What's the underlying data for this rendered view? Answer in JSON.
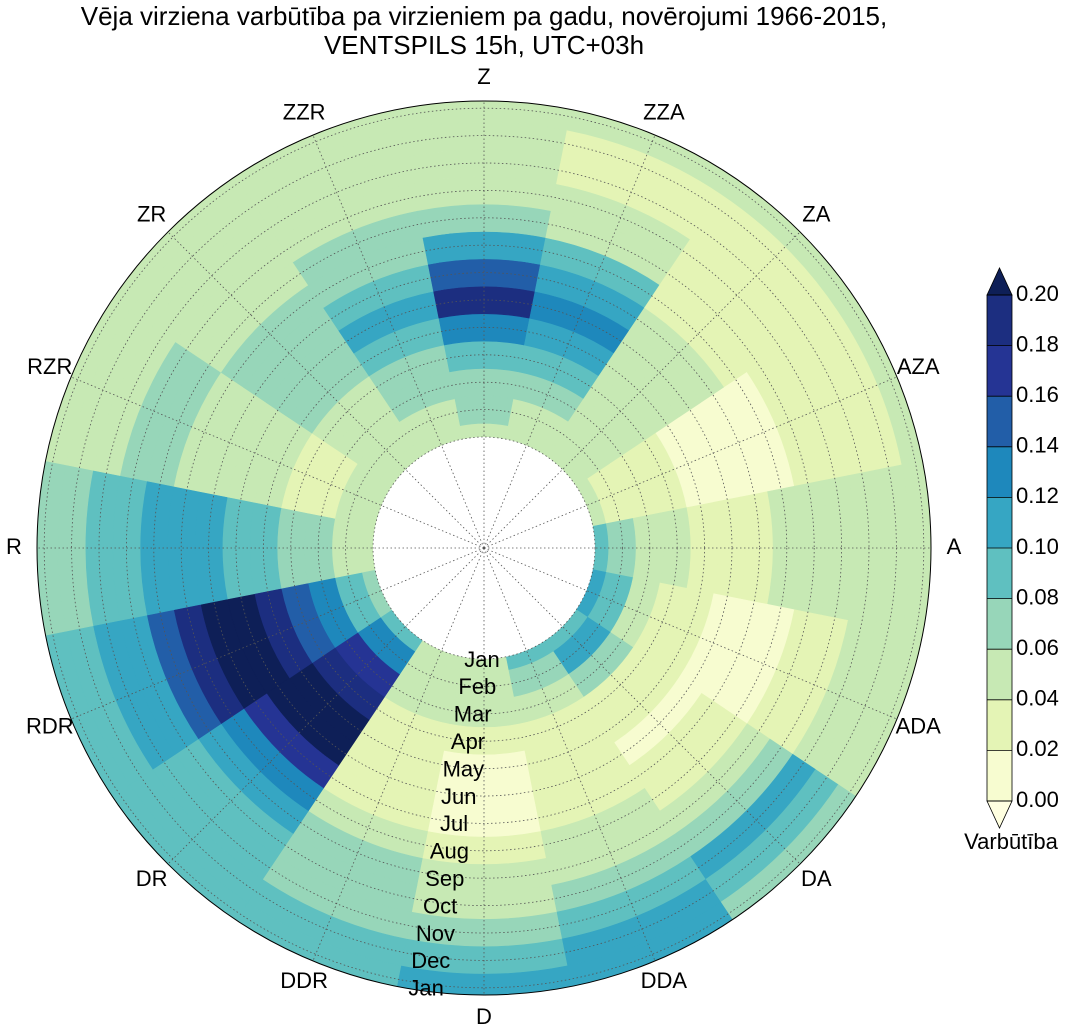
{
  "chart_data": {
    "type": "polar-contour",
    "title": "Vēja virziena varbūtība pa virzieniem pa gadu, novērojumi 1966-2015,",
    "subtitle": "VENTSPILS 15h, UTC+03h",
    "directions": [
      "Z",
      "ZZA",
      "ZA",
      "AZA",
      "A",
      "ADA",
      "DA",
      "DDA",
      "D",
      "DDR",
      "DR",
      "RDR",
      "R",
      "RZR",
      "ZR",
      "ZZR"
    ],
    "months": [
      "Jan",
      "Feb",
      "Mar",
      "Apr",
      "May",
      "Jun",
      "Jul",
      "Aug",
      "Sep",
      "Oct",
      "Nov",
      "Dec",
      "Jan"
    ],
    "values": [
      [
        0.05,
        0.06,
        0.07,
        0.09,
        0.13,
        0.19,
        0.15,
        0.11,
        0.07,
        0.05,
        0.04,
        0.04,
        0.05
      ],
      [
        0.05,
        0.05,
        0.06,
        0.08,
        0.1,
        0.12,
        0.1,
        0.08,
        0.05,
        0.04,
        0.03,
        0.03,
        0.05
      ],
      [
        0.04,
        0.04,
        0.04,
        0.05,
        0.05,
        0.05,
        0.04,
        0.03,
        0.03,
        0.03,
        0.03,
        0.03,
        0.04
      ],
      [
        0.04,
        0.03,
        0.03,
        0.02,
        0.01,
        0.01,
        0.01,
        0.01,
        0.02,
        0.02,
        0.03,
        0.03,
        0.04
      ],
      [
        0.09,
        0.07,
        0.05,
        0.04,
        0.03,
        0.03,
        0.03,
        0.04,
        0.04,
        0.05,
        0.05,
        0.05,
        0.05
      ],
      [
        0.1,
        0.08,
        0.05,
        0.03,
        0.02,
        0.01,
        0.01,
        0.01,
        0.02,
        0.03,
        0.04,
        0.05,
        0.05
      ],
      [
        0.09,
        0.11,
        0.06,
        0.03,
        0.02,
        0.01,
        0.02,
        0.03,
        0.05,
        0.07,
        0.1,
        0.09,
        0.07
      ],
      [
        0.08,
        0.06,
        0.04,
        0.02,
        0.02,
        0.02,
        0.03,
        0.04,
        0.05,
        0.07,
        0.09,
        0.1,
        0.1
      ],
      [
        0.05,
        0.05,
        0.04,
        0.02,
        0.01,
        0.01,
        0.01,
        0.02,
        0.04,
        0.05,
        0.07,
        0.09,
        0.1
      ],
      [
        0.05,
        0.05,
        0.05,
        0.03,
        0.02,
        0.02,
        0.03,
        0.04,
        0.06,
        0.07,
        0.07,
        0.08,
        0.09
      ],
      [
        0.08,
        0.12,
        0.17,
        0.19,
        0.21,
        0.2,
        0.16,
        0.12,
        0.1,
        0.09,
        0.09,
        0.09,
        0.09
      ],
      [
        0.06,
        0.09,
        0.12,
        0.15,
        0.19,
        0.21,
        0.21,
        0.18,
        0.14,
        0.11,
        0.1,
        0.09,
        0.08
      ],
      [
        0.04,
        0.05,
        0.06,
        0.07,
        0.08,
        0.09,
        0.1,
        0.1,
        0.1,
        0.09,
        0.08,
        0.07,
        0.07
      ],
      [
        0.04,
        0.04,
        0.03,
        0.03,
        0.04,
        0.04,
        0.05,
        0.05,
        0.06,
        0.06,
        0.05,
        0.05,
        0.05
      ],
      [
        0.04,
        0.04,
        0.04,
        0.05,
        0.06,
        0.07,
        0.07,
        0.06,
        0.05,
        0.04,
        0.04,
        0.04,
        0.04
      ],
      [
        0.05,
        0.05,
        0.06,
        0.07,
        0.09,
        0.1,
        0.09,
        0.07,
        0.06,
        0.05,
        0.04,
        0.04,
        0.04
      ]
    ],
    "clim": [
      0,
      0.2
    ],
    "levels": [
      {
        "value": 0,
        "label": "0.00"
      },
      {
        "value": 0.02,
        "label": "0.02"
      },
      {
        "value": 0.04,
        "label": "0.04"
      },
      {
        "value": 0.06,
        "label": "0.06"
      },
      {
        "value": 0.08,
        "label": "0.08"
      },
      {
        "value": 0.1,
        "label": "0.10"
      },
      {
        "value": 0.12,
        "label": "0.12"
      },
      {
        "value": 0.14,
        "label": "0.14"
      },
      {
        "value": 0.16,
        "label": "0.16"
      },
      {
        "value": 0.18,
        "label": "0.18"
      },
      {
        "value": 0.2,
        "label": "0.20"
      }
    ],
    "colors": [
      "#f7fcd0",
      "#e4f4b5",
      "#c7e9b4",
      "#97d6b9",
      "#5fc0c0",
      "#36a6c3",
      "#1e88bc",
      "#225ea8",
      "#253494",
      "#1c2e80"
    ],
    "over_color": "#0e1f57",
    "under_color": "#ffffe0",
    "colorbar_label": "Varbūtība",
    "grid": true
  }
}
